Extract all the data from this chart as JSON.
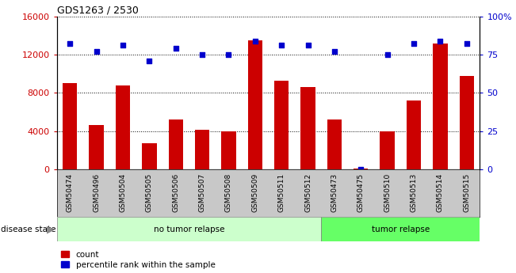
{
  "title": "GDS1263 / 2530",
  "samples": [
    "GSM50474",
    "GSM50496",
    "GSM50504",
    "GSM50505",
    "GSM50506",
    "GSM50507",
    "GSM50508",
    "GSM50509",
    "GSM50511",
    "GSM50512",
    "GSM50473",
    "GSM50475",
    "GSM50510",
    "GSM50513",
    "GSM50514",
    "GSM50515"
  ],
  "counts": [
    9000,
    4600,
    8800,
    2700,
    5200,
    4100,
    4000,
    13500,
    9300,
    8600,
    5200,
    50,
    4000,
    7200,
    13200,
    9800
  ],
  "percentiles": [
    82,
    77,
    81,
    71,
    79,
    75,
    75,
    84,
    81,
    81,
    77,
    0,
    75,
    82,
    84,
    82
  ],
  "no_tumor_count": 10,
  "tumor_count": 6,
  "ylim_left": [
    0,
    16000
  ],
  "ylim_right": [
    0,
    100
  ],
  "yticks_left": [
    0,
    4000,
    8000,
    12000,
    16000
  ],
  "yticks_right": [
    0,
    25,
    50,
    75,
    100
  ],
  "bar_color": "#cc0000",
  "dot_color": "#0000cc",
  "no_tumor_color": "#ccffcc",
  "tumor_color": "#66ff66",
  "tick_area_color": "#c8c8c8",
  "left_tick_color": "#cc0000",
  "right_tick_color": "#0000cc"
}
